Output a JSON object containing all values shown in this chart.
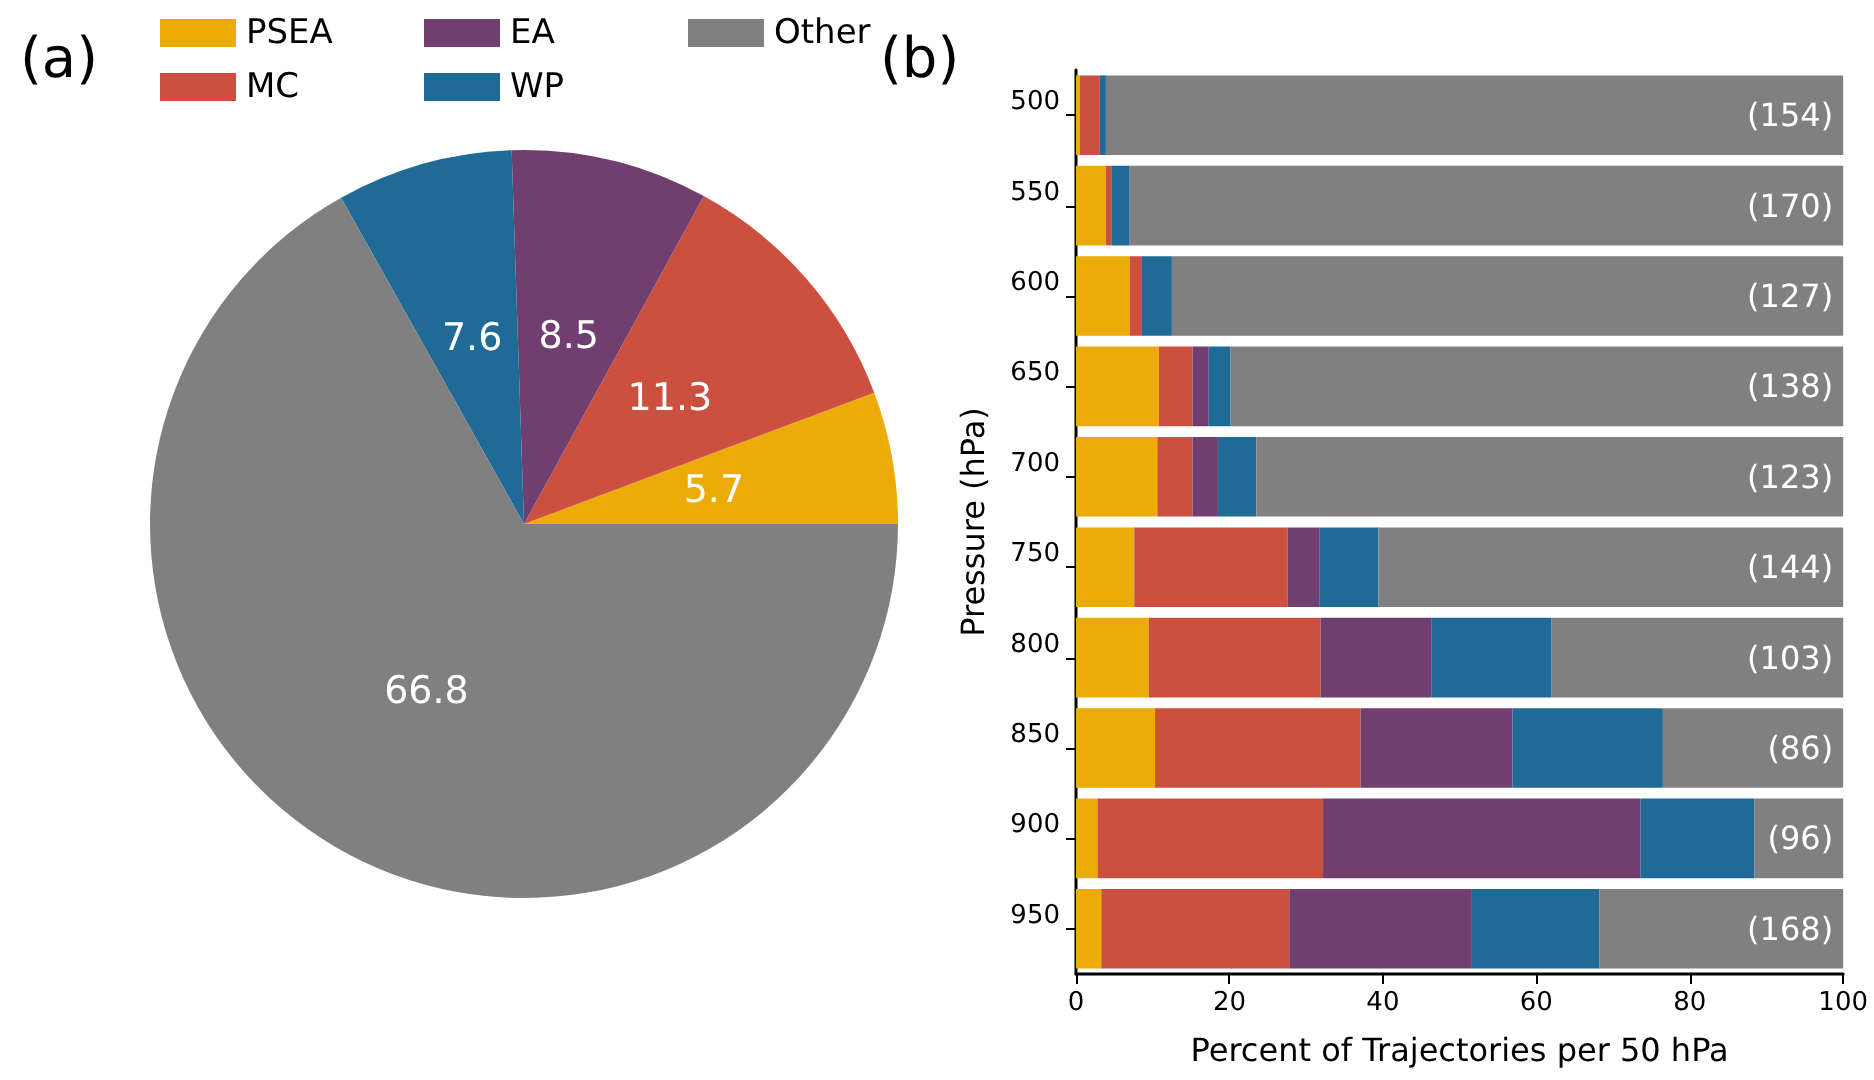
{
  "chart_data": [
    {
      "type": "pie",
      "title": "(a)",
      "categories": [
        "PSEA",
        "MC",
        "EA",
        "WP",
        "Other"
      ],
      "values": [
        5.7,
        11.3,
        8.5,
        7.6,
        66.8
      ],
      "colors": [
        "#ebac0a",
        "#cc5040",
        "#713f6f",
        "#1f6a96",
        "#808080"
      ],
      "data_labels": true,
      "legend": "top"
    },
    {
      "type": "bar",
      "title": "(b)",
      "orientation": "horizontal",
      "stacked": true,
      "categories": [
        "500",
        "550",
        "600",
        "650",
        "700",
        "750",
        "800",
        "850",
        "900",
        "950"
      ],
      "xlabel": "Percent of Trajectories per 50 hPa",
      "ylabel": "Pressure (hPa)",
      "xlim": [
        0,
        100
      ],
      "xticks": [
        0,
        20,
        40,
        60,
        80,
        100
      ],
      "legend": false,
      "grid": false,
      "series": [
        {
          "color": "#ebac0a",
          "values": [
            0.5,
            3.9,
            7.0,
            10.8,
            10.6,
            7.6,
            9.5,
            10.3,
            2.8,
            3.3
          ]
        },
        {
          "color": "#cc5040",
          "values": [
            2.6,
            0.7,
            1.5,
            4.4,
            4.6,
            20.0,
            22.4,
            26.8,
            29.4,
            24.5
          ]
        },
        {
          "color": "#713f6f",
          "values": [
            0,
            0,
            0,
            2.1,
            3.3,
            4.1,
            14.4,
            19.8,
            41.4,
            23.8
          ]
        },
        {
          "color": "#1f6a96",
          "values": [
            0.8,
            2.4,
            4.0,
            2.8,
            5.0,
            7.7,
            15.7,
            19.6,
            14.8,
            16.6
          ]
        },
        {
          "color": "#808080",
          "values": [
            96.1,
            93.0,
            87.5,
            79.9,
            76.5,
            60.6,
            38.0,
            23.5,
            11.6,
            31.8
          ]
        }
      ],
      "annotations": [
        "(154)",
        "(170)",
        "(127)",
        "(138)",
        "(123)",
        "(144)",
        "(103)",
        "(86)",
        "(96)",
        "(168)"
      ]
    }
  ]
}
